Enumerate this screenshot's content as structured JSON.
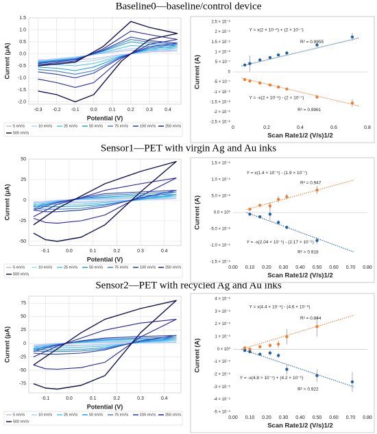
{
  "headings": [
    "Baseline0—baseline/control device",
    "Sensor1—PET with virgin Ag and Au inks",
    "Sensor2—PET with recycled Ag and Au inks"
  ],
  "chart_data": [
    {
      "type": "line",
      "x_label": "Potential (V)",
      "y_label": "Current (μA)",
      "grid": true,
      "legend": "bottom",
      "xlim": [
        -0.35,
        0.47
      ],
      "ylim": [
        -2.1,
        1.5
      ],
      "xticks": [
        {
          "value": -0.3,
          "label": "-0.3"
        },
        {
          "value": -0.2,
          "label": "-0.2"
        },
        {
          "value": -0.1,
          "label": "-0.1"
        },
        {
          "value": 0,
          "label": "0.0"
        },
        0.1,
        0.2,
        0.3,
        0.4
      ],
      "yticks": [
        1.5,
        {
          "value": 1,
          "label": "1.0"
        },
        0.5,
        {
          "value": 0,
          "label": "0.0"
        },
        -0.5,
        {
          "value": -1,
          "label": "-1.0"
        },
        -1.5,
        {
          "value": -2,
          "label": "-2.0"
        }
      ],
      "x": [
        -0.3,
        -0.1,
        0.05,
        0.2,
        0.3,
        0.45,
        0.3,
        0.15,
        0.0,
        -0.1,
        -0.2,
        -0.3
      ],
      "series": [
        {
          "name": "5 mV/s",
          "color": "#c9b8e8",
          "values": [
            -0.28,
            -0.13,
            0.02,
            0.15,
            0.14,
            0.12,
            0.07,
            -0.03,
            -0.2,
            -0.25,
            -0.25,
            -0.25
          ]
        },
        {
          "name": "10 mV/s",
          "color": "#a7d8f0",
          "values": [
            -0.3,
            -0.15,
            0.03,
            0.22,
            0.2,
            0.17,
            0.1,
            -0.05,
            -0.28,
            -0.35,
            -0.33,
            -0.32
          ]
        },
        {
          "name": "25 mV/s",
          "color": "#4fc3f7",
          "values": [
            -0.32,
            -0.18,
            0.05,
            0.35,
            0.3,
            0.25,
            0.15,
            -0.08,
            -0.4,
            -0.5,
            -0.45,
            -0.42
          ]
        },
        {
          "name": "50 mV/s",
          "color": "#1ea0e0",
          "values": [
            -0.35,
            -0.2,
            0.1,
            0.5,
            0.4,
            0.33,
            0.2,
            -0.1,
            -0.55,
            -0.7,
            -0.6,
            -0.55
          ]
        },
        {
          "name": "75 mV/s",
          "color": "#3b7bd4",
          "values": [
            -0.38,
            -0.22,
            0.12,
            0.6,
            0.48,
            0.4,
            0.25,
            -0.12,
            -0.7,
            -0.85,
            -0.72,
            -0.65
          ]
        },
        {
          "name": "100 mV/s",
          "color": "#2639b5",
          "values": [
            -0.4,
            -0.25,
            0.15,
            0.7,
            0.55,
            0.45,
            0.3,
            -0.15,
            -0.8,
            -1.0,
            -0.85,
            -0.75
          ]
        },
        {
          "name": "250 mV/s",
          "color": "#1d1da0",
          "values": [
            -0.45,
            -0.3,
            0.2,
            0.95,
            0.8,
            0.6,
            0.4,
            -0.2,
            -1.2,
            -1.4,
            -1.2,
            -1.05
          ]
        },
        {
          "name": "500 mV/s",
          "color": "#10104a",
          "values": [
            -0.5,
            -0.35,
            0.3,
            1.35,
            1.1,
            0.85,
            0.6,
            -0.3,
            -1.7,
            -2.0,
            -1.7,
            -1.55
          ]
        }
      ]
    },
    {
      "type": "scatter",
      "x_label": "Scan Rate1/2 (V/s)1/2",
      "y_label": "Current (A)",
      "grid": false,
      "xlim": [
        0,
        0.8
      ],
      "ylim": [
        -2.5e-06,
        2.5e-06
      ],
      "xticks": [
        0,
        0.2,
        0.4,
        0.6,
        0.8
      ],
      "yticks": [
        {
          "value": 2.5e-06,
          "label": "2.5 × 10⁻⁶"
        },
        {
          "value": 2e-06,
          "label": "2 × 10⁻⁶"
        },
        {
          "value": 1.5e-06,
          "label": "1.5 × 10⁻⁶"
        },
        {
          "value": 1e-06,
          "label": "1 × 10⁻⁶"
        },
        {
          "value": 5e-07,
          "label": "5 × 10⁻⁷"
        },
        0,
        {
          "value": -5e-07,
          "label": "-5 × 10⁻⁷"
        },
        {
          "value": -1e-06,
          "label": "-1 × 10⁻⁶"
        },
        {
          "value": -1.5e-06,
          "label": "-1.5 × 10⁻⁶"
        },
        {
          "value": -2e-06,
          "label": "-2 × 10⁻⁶"
        },
        {
          "value": -2.5e-06,
          "label": "-2.5 × 10⁻⁶"
        }
      ],
      "series": [
        {
          "color": "#1f5fa0",
          "x": [
            0.07,
            0.1,
            0.16,
            0.22,
            0.27,
            0.32,
            0.5,
            0.71
          ],
          "values": [
            3.5e-07,
            4.2e-07,
            6e-07,
            7.2e-07,
            8.5e-07,
            9.5e-07,
            1.35e-06,
            1.75e-06
          ],
          "errors": [
            5e-08,
            4e-07,
            5e-08,
            5e-08,
            6e-08,
            5e-08,
            1e-07,
            2e-07
          ]
        },
        {
          "color": "#ed7d31",
          "x": [
            0.07,
            0.1,
            0.16,
            0.22,
            0.27,
            0.32,
            0.5,
            0.71
          ],
          "values": [
            -3.8e-07,
            -4.5e-07,
            -5.5e-07,
            -6.5e-07,
            -7.5e-07,
            -8.5e-07,
            -1.25e-06,
            -1.55e-06
          ],
          "errors": [
            5e-08,
            5e-08,
            5e-08,
            5e-08,
            5e-08,
            5e-08,
            1e-07,
            2e-07
          ]
        }
      ],
      "trendlines": [
        {
          "color": "#1f5fa0",
          "x": [
            0.05,
            0.75
          ],
          "values": [
            3e-07,
            1.7e-06
          ]
        },
        {
          "color": "#ed7d31",
          "x": [
            0.05,
            0.75
          ],
          "values": [
            -3e-07,
            -1.7e-06
          ]
        }
      ],
      "annotations": [
        "Y = x(2 × 10⁻⁶) + (2 × 10⁻⁷)",
        "R² = 0.9955",
        "Y = -x(2 × 10⁻⁶) - (2 × 10⁻⁷)",
        "R² = 0.9961"
      ]
    },
    {
      "type": "line",
      "x_label": "Potential (V)",
      "y_label": "Current (μA)",
      "grid": true,
      "legend": "bottom",
      "xlim": [
        -0.17,
        0.47
      ],
      "ylim": [
        -55,
        50
      ],
      "xticks": [
        {
          "value": -0.1,
          "label": "-0.1"
        },
        {
          "value": 0,
          "label": "0.0"
        },
        0.1,
        0.2,
        0.3,
        0.4
      ],
      "yticks": [
        50,
        25,
        0,
        -25,
        -50
      ],
      "x": [
        -0.15,
        -0.05,
        0.05,
        0.15,
        0.3,
        0.45,
        0.3,
        0.15,
        0.05,
        -0.05,
        -0.1,
        -0.15
      ],
      "series": [
        {
          "name": "5 mV/s",
          "color": "#c9b8e8",
          "values": [
            -3,
            0,
            1,
            1,
            2,
            2,
            0,
            -1,
            -2,
            -2,
            -2,
            -2
          ]
        },
        {
          "name": "10 mV/s",
          "color": "#a7d8f0",
          "values": [
            -4,
            -1,
            1,
            2,
            2,
            3,
            0,
            -2,
            -3,
            -3,
            -3,
            -3
          ]
        },
        {
          "name": "25 mV/s",
          "color": "#4fc3f7",
          "values": [
            -6,
            -1,
            1,
            3,
            4,
            5,
            1,
            -3,
            -5,
            -5,
            -5,
            -5
          ]
        },
        {
          "name": "50 mV/s",
          "color": "#1ea0e0",
          "values": [
            -8,
            -2,
            2,
            4,
            6,
            7,
            1,
            -5,
            -7,
            -8,
            -8,
            -7
          ]
        },
        {
          "name": "75 mV/s",
          "color": "#3b7bd4",
          "values": [
            -10,
            -2,
            2,
            6,
            8,
            10,
            2,
            -6,
            -10,
            -11,
            -11,
            -10
          ]
        },
        {
          "name": "100 mV/s",
          "color": "#2639b5",
          "values": [
            -12,
            -3,
            3,
            8,
            10,
            12,
            3,
            -8,
            -12,
            -14,
            -14,
            -12
          ]
        },
        {
          "name": "250 mV/s",
          "color": "#1d1da0",
          "values": [
            -20,
            -5,
            3,
            12,
            20,
            27,
            5,
            -18,
            -25,
            -28,
            -27,
            -22
          ]
        },
        {
          "name": "500 mV/s",
          "color": "#10104a",
          "values": [
            -30,
            -10,
            5,
            20,
            35,
            47,
            10,
            -30,
            -45,
            -50,
            -48,
            -40
          ]
        }
      ]
    },
    {
      "type": "scatter",
      "x_label": "Scan Rate1/2 (V/s)1/2",
      "y_label": "Current (A)",
      "grid": false,
      "xlim": [
        0,
        0.8
      ],
      "ylim": [
        -1.5e-05,
        1.5e-05
      ],
      "xticks": [
        {
          "value": 0,
          "label": "0.00"
        },
        {
          "value": 0.1,
          "label": "0.10"
        },
        {
          "value": 0.2,
          "label": "0.20"
        },
        {
          "value": 0.3,
          "label": "0.30"
        },
        {
          "value": 0.4,
          "label": "0.40"
        },
        {
          "value": 0.5,
          "label": "0.50"
        },
        {
          "value": 0.6,
          "label": "0.60"
        },
        {
          "value": 0.7,
          "label": "0.70"
        },
        {
          "value": 0.8,
          "label": "0.80"
        }
      ],
      "yticks": [
        {
          "value": 1.5e-05,
          "label": "1.5 × 10⁻⁵"
        },
        {
          "value": 1e-05,
          "label": "1.0 × 10⁻⁵"
        },
        {
          "value": 5e-06,
          "label": "5.0 × 10⁻⁶"
        },
        {
          "value": 0,
          "label": "0.0 × 10⁰"
        },
        {
          "value": -5e-06,
          "label": "-5.0 × 10⁻⁶"
        },
        {
          "value": -1e-05,
          "label": "-1.0 × 10⁻⁵"
        },
        {
          "value": -1.5e-05,
          "label": "-1.5 × 10⁻⁵"
        }
      ],
      "series": [
        {
          "color": "#ed7d31",
          "x": [
            0.1,
            0.16,
            0.22,
            0.27,
            0.32,
            0.5
          ],
          "values": [
            1e-06,
            2.2e-06,
            2e-06,
            4e-06,
            4.8e-06,
            6.8e-06
          ],
          "errors": [
            3e-07,
            4e-07,
            1.2e-06,
            1e-06,
            8e-07,
            1.2e-06
          ]
        },
        {
          "color": "#1f5fa0",
          "x": [
            0.1,
            0.16,
            0.22,
            0.27,
            0.32,
            0.5
          ],
          "values": [
            -5e-07,
            -1.3e-06,
            -5e-07,
            -3e-06,
            -4.5e-06,
            -8.5e-06
          ],
          "errors": [
            3e-07,
            3e-07,
            2e-06,
            7e-07,
            5e-07,
            1e-06
          ]
        }
      ],
      "trendlines": [
        {
          "color": "#ed7d31",
          "x": [
            0.08,
            0.72
          ],
          "values": [
            9.3e-07,
            9.9e-06
          ]
        },
        {
          "color": "#1f5fa0",
          "x": [
            0.08,
            0.72
          ],
          "values": [
            0,
            -1.2e-05
          ]
        }
      ],
      "annotations": [
        "Y = x(1.4 × 10⁻⁵) - (1.9 × 10⁻⁷)",
        "R² = 0.947",
        "Y = -x(2.04 × 10⁻⁵) - (2.17 × 10⁻⁶)",
        "R² = 0.918"
      ]
    },
    {
      "type": "line",
      "x_label": "Potential (V)",
      "y_label": "Current (μA)",
      "grid": true,
      "legend": "bottom",
      "xlim": [
        -0.17,
        0.47
      ],
      "ylim": [
        -92,
        88
      ],
      "xticks": [
        {
          "value": -0.1,
          "label": "-0.1"
        },
        {
          "value": 0,
          "label": "0.0"
        },
        0.1,
        0.2,
        0.3,
        0.4
      ],
      "yticks": [
        75,
        50,
        25,
        0,
        -25,
        -50,
        -75
      ],
      "x": [
        -0.15,
        -0.05,
        0.05,
        0.15,
        0.3,
        0.45,
        0.3,
        0.15,
        0.05,
        -0.05,
        -0.1,
        -0.15
      ],
      "series": [
        {
          "name": "5 mV/s",
          "color": "#c9b8e8",
          "values": [
            -3,
            0,
            1,
            1,
            2,
            2,
            1,
            -2,
            -3,
            -3,
            -3,
            -3
          ]
        },
        {
          "name": "10 mV/s",
          "color": "#a7d8f0",
          "values": [
            -5,
            -1,
            1,
            2,
            3,
            3,
            1,
            -3,
            -4,
            -5,
            -5,
            -5
          ]
        },
        {
          "name": "25 mV/s",
          "color": "#4fc3f7",
          "values": [
            -7,
            -1,
            2,
            4,
            5,
            6,
            2,
            -5,
            -7,
            -8,
            -8,
            -7
          ]
        },
        {
          "name": "50 mV/s",
          "color": "#1ea0e0",
          "values": [
            -10,
            -2,
            3,
            6,
            8,
            9,
            3,
            -8,
            -11,
            -12,
            -12,
            -11
          ]
        },
        {
          "name": "75 mV/s",
          "color": "#3b7bd4",
          "values": [
            -12,
            -2,
            4,
            8,
            10,
            12,
            4,
            -10,
            -14,
            -15,
            -15,
            -14
          ]
        },
        {
          "name": "100 mV/s",
          "color": "#2639b5",
          "values": [
            -15,
            -3,
            5,
            10,
            13,
            15,
            5,
            -12,
            -18,
            -20,
            -20,
            -18
          ]
        },
        {
          "name": "250 mV/s",
          "color": "#1d1da0",
          "values": [
            -25,
            -5,
            10,
            25,
            38,
            45,
            12,
            -35,
            -45,
            -48,
            -47,
            -40
          ]
        },
        {
          "name": "500 mV/s",
          "color": "#10104a",
          "values": [
            -40,
            -10,
            20,
            45,
            65,
            80,
            20,
            -60,
            -78,
            -85,
            -83,
            -75
          ]
        }
      ]
    },
    {
      "type": "scatter",
      "x_label": "Scan Rate1/2 (V/s)1/2",
      "y_label": "Current (A)",
      "grid": false,
      "xlim": [
        0,
        0.8
      ],
      "ylim": [
        -5e-05,
        4e-05
      ],
      "xticks": [
        {
          "value": 0,
          "label": "0.00"
        },
        {
          "value": 0.1,
          "label": "0.10"
        },
        {
          "value": 0.2,
          "label": "0.20"
        },
        {
          "value": 0.3,
          "label": "0.30"
        },
        {
          "value": 0.4,
          "label": "0.40"
        },
        {
          "value": 0.5,
          "label": "0.50"
        },
        {
          "value": 0.6,
          "label": "0.60"
        },
        {
          "value": 0.7,
          "label": "0.70"
        },
        {
          "value": 0.8,
          "label": "0.80"
        }
      ],
      "yticks": [
        {
          "value": 4e-05,
          "label": "4 × 10⁻⁵"
        },
        {
          "value": 3e-05,
          "label": "3 × 10⁻⁵"
        },
        {
          "value": 2e-05,
          "label": "2 × 10⁻⁵"
        },
        {
          "value": 1e-05,
          "label": "1 × 10⁻⁵"
        },
        {
          "value": 0,
          "label": "0 × 10⁰"
        },
        {
          "value": -1e-05,
          "label": "-1 × 10⁻⁵"
        },
        {
          "value": -2e-05,
          "label": "-2 × 10⁻⁵"
        },
        {
          "value": -3e-05,
          "label": "-3 × 10⁻⁵"
        },
        {
          "value": -4e-05,
          "label": "-4 × 10⁻⁵"
        },
        {
          "value": -5e-05,
          "label": "-5 × 10⁻⁵"
        }
      ],
      "series": [
        {
          "color": "#ed7d31",
          "x": [
            0.07,
            0.1,
            0.16,
            0.22,
            0.27,
            0.32,
            0.5
          ],
          "values": [
            1e-06,
            0,
            2e-06,
            3e-06,
            4e-06,
            1e-05,
            1.8e-05
          ],
          "errors": [
            1e-06,
            1e-06,
            1e-06,
            2e-06,
            3e-06,
            6e-06,
            8e-06
          ]
        },
        {
          "color": "#1f5fa0",
          "x": [
            0.07,
            0.1,
            0.16,
            0.22,
            0.27,
            0.32,
            0.5,
            0.71
          ],
          "values": [
            -1e-06,
            -2e-06,
            -4e-06,
            -3e-06,
            -5e-06,
            -1.6e-05,
            -2.1e-05,
            -2.6e-05
          ],
          "errors": [
            1e-06,
            1e-06,
            1e-06,
            2e-06,
            2e-06,
            4e-06,
            5e-06,
            8e-06
          ]
        }
      ],
      "trendlines": [
        {
          "color": "#ed7d31",
          "x": [
            0.05,
            0.72
          ],
          "values": [
            0,
            2.7e-05
          ]
        },
        {
          "color": "#1f5fa0",
          "x": [
            0.05,
            0.72
          ],
          "values": [
            0,
            -3e-05
          ]
        }
      ],
      "annotations": [
        "Y = x(4.4 × 10⁻⁵) - (4.6 × 10⁻⁶)",
        "R² = 0.844",
        "Y = -x(4.8 × 10⁻⁵) + (4.2 × 10⁻⁶)",
        "R² = 0.922"
      ]
    }
  ]
}
